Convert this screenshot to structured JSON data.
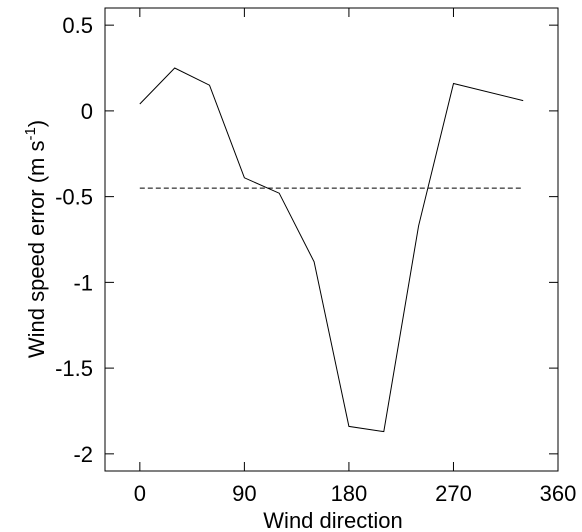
{
  "chart_data": {
    "type": "line",
    "xlabel": "Wind direction",
    "ylabel": "Wind speed error (m s",
    "ylabel_sup": "-1",
    "ylabel_close": ")",
    "xlim": [
      -30,
      360
    ],
    "ylim": [
      -2.1,
      0.6
    ],
    "xticks": [
      0,
      90,
      180,
      270,
      360
    ],
    "xtick_labels": [
      "0",
      "90",
      "180",
      "270",
      "360"
    ],
    "yticks": [
      0.5,
      0,
      -0.5,
      -1,
      -1.5,
      -2
    ],
    "ytick_labels": [
      "0.5",
      "0",
      "-0.5",
      "-1",
      "-1.5",
      "-2"
    ],
    "grid": false,
    "series": [
      {
        "style": "solid",
        "color": "#000000",
        "x": [
          0,
          30,
          60,
          90,
          120,
          150,
          180,
          210,
          240,
          270,
          330
        ],
        "y": [
          0.04,
          0.25,
          0.15,
          -0.39,
          -0.48,
          -0.88,
          -1.84,
          -1.87,
          -0.67,
          0.16,
          0.06
        ]
      },
      {
        "style": "dashed",
        "color": "#000000",
        "x": [
          0,
          330
        ],
        "y": [
          -0.45,
          -0.45
        ]
      }
    ]
  }
}
